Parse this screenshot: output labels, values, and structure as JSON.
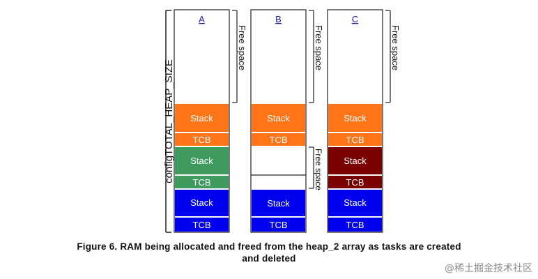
{
  "colors": {
    "orange": "#ff7518",
    "green": "#3f9a5f",
    "blue": "#0000ee",
    "darkred": "#7a0000",
    "divider": "#ffffff",
    "outline": "#222222",
    "label_link": "#1a1aaa"
  },
  "vertical_label": "configTOTAL_HEAP_SIZE",
  "columns": [
    {
      "label": "A",
      "free_label": "Free space",
      "blocks": [
        {
          "label": "Stack",
          "color": "orange"
        },
        {
          "label": "TCB",
          "color": "orange"
        },
        {
          "label": "Stack",
          "color": "green"
        },
        {
          "label": "TCB",
          "color": "green"
        },
        {
          "label": "Stack",
          "color": "blue"
        },
        {
          "label": "TCB",
          "color": "blue"
        }
      ]
    },
    {
      "label": "B",
      "free_label": "Free space",
      "middle_free_label": "Free space",
      "blocks": [
        {
          "label": "Stack",
          "color": "orange"
        },
        {
          "label": "TCB",
          "color": "orange"
        },
        {
          "label": "Stack",
          "color": "blue"
        },
        {
          "label": "TCB",
          "color": "blue"
        }
      ]
    },
    {
      "label": "C",
      "free_label": "Free space",
      "blocks": [
        {
          "label": "Stack",
          "color": "orange"
        },
        {
          "label": "TCB",
          "color": "orange"
        },
        {
          "label": "Stack",
          "color": "darkred"
        },
        {
          "label": "TCB",
          "color": "darkred"
        },
        {
          "label": "Stack",
          "color": "blue"
        },
        {
          "label": "TCB",
          "color": "blue"
        }
      ]
    }
  ],
  "caption_line1": "Figure 6.  RAM being allocated and freed from the heap_2 array as tasks are created",
  "caption_line2": "and deleted",
  "watermark": "@稀土掘金技术社区"
}
